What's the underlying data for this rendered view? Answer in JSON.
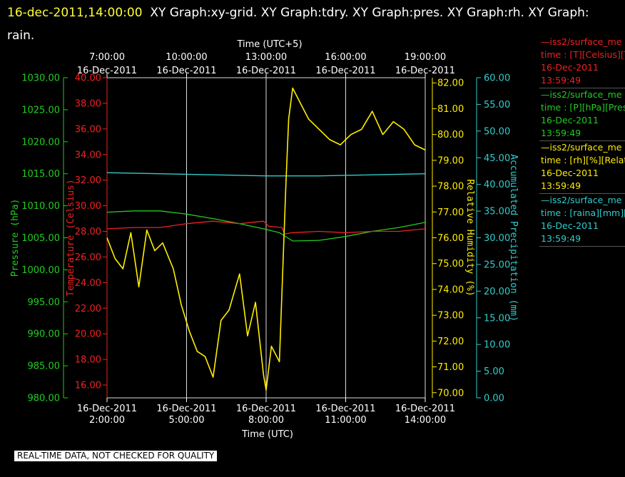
{
  "header": {
    "date_label": "16-dec-2011,14:00:00",
    "graphs": "XY Graph:xy-grid.  XY Graph:tdry.  XY Graph:pres.  XY Graph:rh.  XY Graph:",
    "line2": "rain."
  },
  "footer": {
    "notice": "REAL-TIME DATA, NOT CHECKED FOR QUALITY"
  },
  "colors": {
    "pressure": "#22cc22",
    "temperature": "#ee2222",
    "humidity": "#ffee00",
    "rain": "#33cccc",
    "grid": "#dddddd"
  },
  "legend": [
    {
      "line1": "—iss2/surface_me",
      "line2": "time : [T][Celsius][T",
      "line3": "16-Dec-2011",
      "line4": "13:59:49",
      "color": "#ee2222"
    },
    {
      "line1": "—iss2/surface_me",
      "line2": "time : [P][hPa][Pres",
      "line3": "16-Dec-2011",
      "line4": "13:59:49",
      "color": "#22cc22"
    },
    {
      "line1": "—iss2/surface_me",
      "line2": "time : [rh][%][Relati",
      "line3": "16-Dec-2011",
      "line4": "13:59:49",
      "color": "#ffee00"
    },
    {
      "line1": "—iss2/surface_me",
      "line2": "time : [raina][mm][A",
      "line3": "16-Dec-2011",
      "line4": "13:59:49",
      "color": "#33cccc"
    }
  ],
  "chart_data": {
    "type": "line",
    "x_bottom": {
      "label": "Time (UTC)",
      "range": [
        "16-Dec-2011 02:00",
        "16-Dec-2011 14:00"
      ],
      "ticks": [
        {
          "date": "16-Dec-2011",
          "time": "2:00:00"
        },
        {
          "date": "16-Dec-2011",
          "time": "5:00:00"
        },
        {
          "date": "16-Dec-2011",
          "time": "8:00:00"
        },
        {
          "date": "16-Dec-2011",
          "time": "11:00:00"
        },
        {
          "date": "16-Dec-2011",
          "time": "14:00:00"
        }
      ]
    },
    "x_top": {
      "label": "Time (UTC+5)",
      "ticks": [
        {
          "time": "7:00:00",
          "date": "16-Dec-2011"
        },
        {
          "time": "10:00:00",
          "date": "16-Dec-2011"
        },
        {
          "time": "13:00:00",
          "date": "16-Dec-2011"
        },
        {
          "time": "16:00:00",
          "date": "16-Dec-2011"
        },
        {
          "time": "19:00:00",
          "date": "16-Dec-2011"
        }
      ]
    },
    "y_axes": {
      "pressure": {
        "label": "Pressure (hPa)",
        "range": [
          980,
          1030
        ],
        "ticks": [
          "980.00",
          "985.00",
          "990.00",
          "995.00",
          "1000.00",
          "1005.00",
          "1010.00",
          "1015.00",
          "1020.00",
          "1025.00",
          "1030.00"
        ]
      },
      "temperature": {
        "label": "Temperature (Celsius)",
        "range": [
          15,
          40
        ],
        "ticks": [
          "16.00",
          "18.00",
          "20.00",
          "22.00",
          "24.00",
          "26.00",
          "28.00",
          "30.00",
          "32.00",
          "34.00",
          "36.00",
          "38.00",
          "40.00"
        ]
      },
      "humidity": {
        "label": "Relative Humidity (%)",
        "range": [
          69.8,
          82.2
        ],
        "ticks": [
          "70.00",
          "71.00",
          "72.00",
          "73.00",
          "74.00",
          "75.00",
          "76.00",
          "77.00",
          "78.00",
          "79.00",
          "80.00",
          "81.00",
          "82.00"
        ]
      },
      "rain": {
        "label": "Accumulated Precipitation (mm)",
        "range": [
          0,
          60
        ],
        "ticks": [
          "0.00",
          "5.00",
          "10.00",
          "15.00",
          "20.00",
          "25.00",
          "30.00",
          "35.00",
          "40.00",
          "45.00",
          "50.00",
          "55.00",
          "60.00"
        ]
      }
    },
    "series": [
      {
        "key": "pressure",
        "x_hours": [
          2,
          3,
          4,
          5,
          6,
          7,
          8,
          8.5,
          9,
          10,
          11,
          12,
          13,
          14
        ],
        "values": [
          1009.0,
          1009.2,
          1009.2,
          1008.7,
          1008.0,
          1007.2,
          1006.3,
          1005.8,
          1004.5,
          1004.6,
          1005.2,
          1006.0,
          1006.6,
          1007.4
        ]
      },
      {
        "key": "temperature",
        "x_hours": [
          2,
          3,
          4,
          5,
          6,
          7,
          7.9,
          8.1,
          8.6,
          8.7,
          9,
          10,
          11,
          12,
          13,
          14
        ],
        "values": [
          28.2,
          28.3,
          28.3,
          28.6,
          28.8,
          28.6,
          28.8,
          28.4,
          28.3,
          27.8,
          27.9,
          28.0,
          27.9,
          28.0,
          28.0,
          28.2
        ]
      },
      {
        "key": "humidity",
        "x_hours": [
          2,
          2.3,
          2.6,
          2.9,
          3.2,
          3.5,
          3.8,
          4.1,
          4.5,
          4.8,
          5.1,
          5.4,
          5.7,
          6.0,
          6.3,
          6.6,
          7.0,
          7.3,
          7.6,
          7.9,
          8.0,
          8.2,
          8.5,
          8.75,
          8.85,
          9.0,
          9.3,
          9.6,
          10.0,
          10.4,
          10.8,
          11.2,
          11.6,
          12.0,
          12.4,
          12.8,
          13.2,
          13.6,
          14.0
        ],
        "values": [
          76.0,
          75.2,
          74.8,
          76.2,
          74.1,
          76.3,
          75.5,
          75.8,
          74.8,
          73.4,
          72.4,
          71.6,
          71.4,
          70.6,
          72.8,
          73.2,
          74.6,
          72.2,
          73.5,
          70.7,
          70.1,
          71.8,
          71.2,
          78.2,
          80.6,
          81.8,
          81.2,
          80.6,
          80.2,
          79.8,
          79.6,
          80.0,
          80.2,
          80.9,
          80.0,
          80.5,
          80.2,
          79.6,
          79.4
        ]
      },
      {
        "key": "rain",
        "x_hours": [
          2,
          4,
          6,
          8,
          10,
          12,
          14
        ],
        "values": [
          42.2,
          42.0,
          41.8,
          41.6,
          41.6,
          41.8,
          42.0
        ]
      }
    ]
  }
}
